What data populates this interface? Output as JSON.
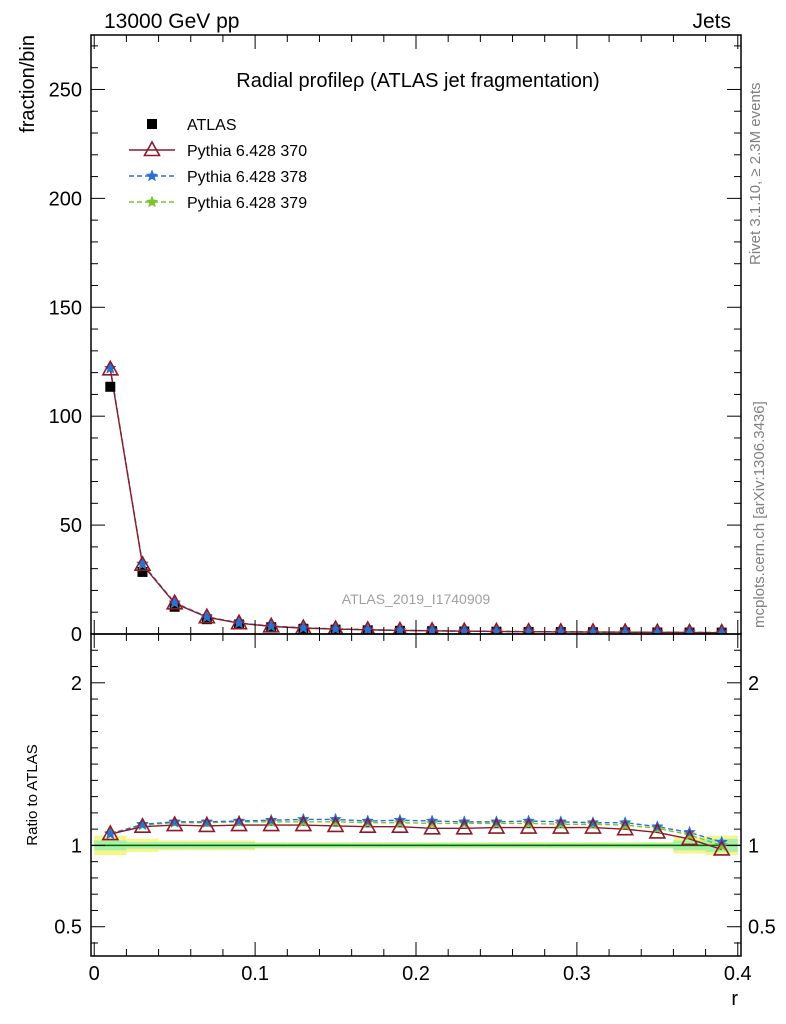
{
  "header": {
    "energy_label": "13000 GeV pp",
    "category_label": "Jets"
  },
  "side": {
    "rivet_label": "Rivet 3.1.10, ≥ 2.3M events",
    "source_label": "mcplots.cern.ch [arXiv:1306.3436]"
  },
  "chart_data": {
    "type": "scatter",
    "title": "Radial profileρ (ATLAS jet fragmentation)",
    "watermark": "ATLAS_2019_I1740909",
    "xlabel": "r",
    "ylabel": "fraction/bin",
    "ratio_ylabel": "Ratio to ATLAS",
    "xlim": [
      -0.002,
      0.402
    ],
    "ylim": [
      0,
      275
    ],
    "ratio_ylim": [
      0.32,
      2.3
    ],
    "x_ticks": [
      "0",
      "0.1",
      "0.2",
      "0.3",
      "0.4"
    ],
    "y_ticks": [
      "0",
      "50",
      "100",
      "150",
      "200",
      "250"
    ],
    "ratio_ticks": [
      "0.5",
      "1",
      "2"
    ],
    "legend_position": "top-left",
    "x": [
      0.01,
      0.03,
      0.05,
      0.07,
      0.09,
      0.11,
      0.13,
      0.15,
      0.17,
      0.19,
      0.21,
      0.23,
      0.25,
      0.27,
      0.29,
      0.31,
      0.33,
      0.35,
      0.37,
      0.39
    ],
    "bin_edges": [
      0,
      0.02,
      0.04,
      0.06,
      0.08,
      0.1,
      0.12,
      0.14,
      0.16,
      0.18,
      0.2,
      0.22,
      0.24,
      0.26,
      0.28,
      0.3,
      0.32,
      0.34,
      0.36,
      0.38,
      0.4
    ],
    "data": {
      "name": "ATLAS",
      "values": [
        113.5,
        28.5,
        12.5,
        6.8,
        4.4,
        3.1,
        2.4,
        2.0,
        1.7,
        1.45,
        1.3,
        1.15,
        1.05,
        0.95,
        0.88,
        0.82,
        0.76,
        0.71,
        0.67,
        0.63
      ],
      "band_inner": [
        0.03,
        0.02,
        0.02,
        0.02,
        0.02,
        0.015,
        0.015,
        0.015,
        0.015,
        0.015,
        0.015,
        0.015,
        0.015,
        0.015,
        0.015,
        0.015,
        0.015,
        0.015,
        0.03,
        0.04
      ],
      "band_outer": [
        0.06,
        0.04,
        0.03,
        0.03,
        0.03,
        0.02,
        0.02,
        0.02,
        0.02,
        0.02,
        0.02,
        0.02,
        0.02,
        0.02,
        0.02,
        0.02,
        0.02,
        0.02,
        0.05,
        0.06
      ]
    },
    "series": [
      {
        "name": "Pythia 6.428 370",
        "color": "#8b1a2b",
        "marker": "triangle",
        "dashed": false,
        "values": [
          121.5,
          31.8,
          14.1,
          7.7,
          4.95,
          3.5,
          2.7,
          2.25,
          1.9,
          1.62,
          1.44,
          1.27,
          1.16,
          1.05,
          0.97,
          0.9,
          0.83,
          0.76,
          0.7,
          0.61
        ],
        "ratio": [
          1.07,
          1.115,
          1.125,
          1.12,
          1.125,
          1.125,
          1.125,
          1.12,
          1.115,
          1.115,
          1.105,
          1.105,
          1.11,
          1.11,
          1.11,
          1.11,
          1.1,
          1.08,
          1.04,
          0.975
        ]
      },
      {
        "name": "Pythia 6.428 378",
        "color": "#2a6fd6",
        "marker": "star",
        "dashed": true,
        "values": [
          122,
          32.2,
          14.4,
          7.9,
          5.1,
          3.62,
          2.82,
          2.36,
          1.98,
          1.7,
          1.5,
          1.32,
          1.21,
          1.1,
          1.01,
          0.93,
          0.86,
          0.79,
          0.73,
          0.64
        ],
        "ratio": [
          1.07,
          1.13,
          1.145,
          1.145,
          1.15,
          1.155,
          1.16,
          1.16,
          1.15,
          1.155,
          1.15,
          1.145,
          1.145,
          1.15,
          1.145,
          1.14,
          1.14,
          1.115,
          1.08,
          1.02
        ]
      },
      {
        "name": "Pythia 6.428 379",
        "color": "#7cc42a",
        "marker": "star",
        "dashed": true,
        "values": [
          122,
          32,
          14.3,
          7.8,
          5.05,
          3.58,
          2.78,
          2.32,
          1.96,
          1.68,
          1.48,
          1.3,
          1.19,
          1.08,
          1.0,
          0.92,
          0.85,
          0.78,
          0.72,
          0.63
        ],
        "ratio": [
          1.075,
          1.125,
          1.14,
          1.14,
          1.145,
          1.145,
          1.145,
          1.145,
          1.14,
          1.14,
          1.135,
          1.135,
          1.135,
          1.135,
          1.13,
          1.13,
          1.125,
          1.105,
          1.065,
          1.0
        ]
      }
    ],
    "colors": {
      "band_outer": "#f5f58a",
      "band_inner": "#a8f0a8",
      "ratio_line": "#006400"
    }
  }
}
